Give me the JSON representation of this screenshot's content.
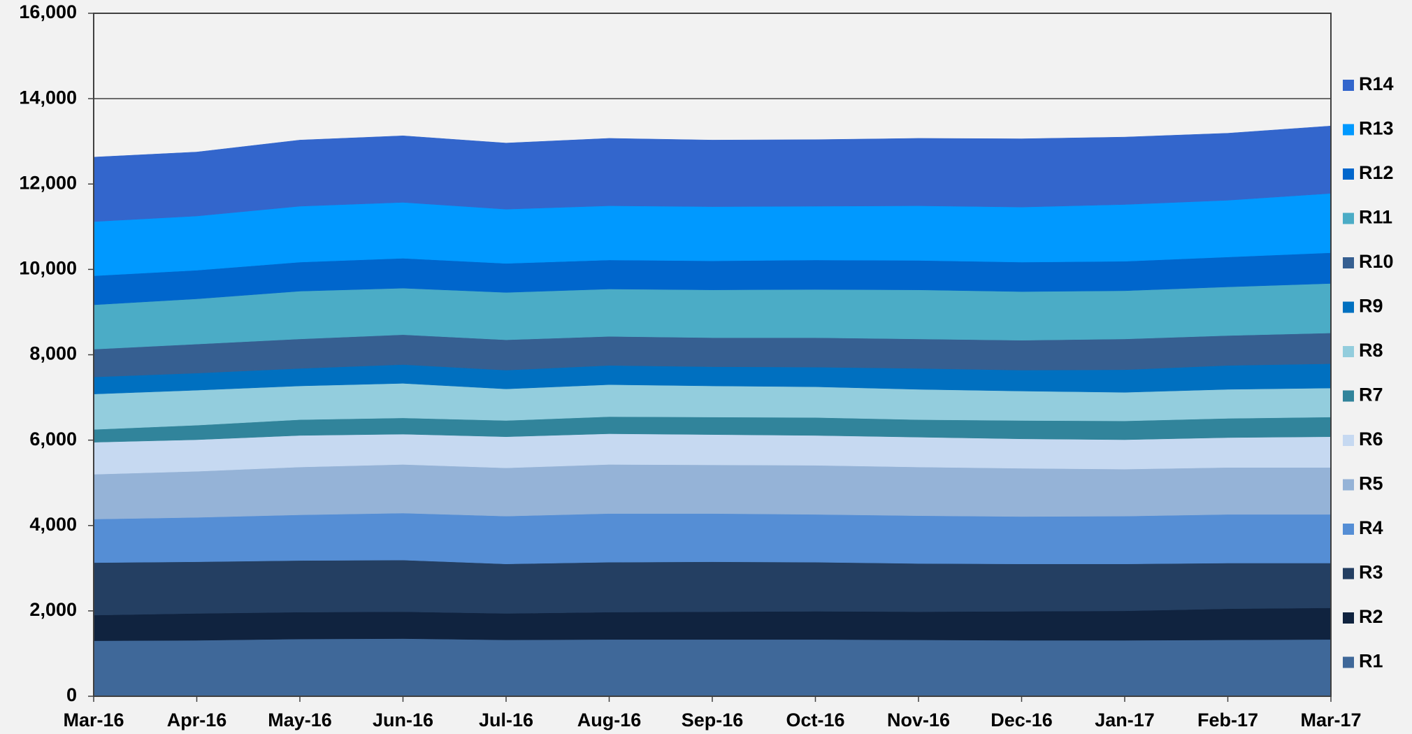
{
  "chart_data": {
    "type": "stacked_area",
    "categories": [
      "Mar-16",
      "Apr-16",
      "May-16",
      "Jun-16",
      "Jul-16",
      "Aug-16",
      "Sep-16",
      "Oct-16",
      "Nov-16",
      "Dec-16",
      "Jan-17",
      "Feb-17",
      "Mar-17"
    ],
    "ylim": [
      0,
      16000
    ],
    "yticks": [
      0,
      {
        "value": 2000,
        "label": "2,000"
      },
      {
        "value": 4000,
        "label": "4,000"
      },
      {
        "value": 6000,
        "label": "6,000"
      },
      {
        "value": 8000,
        "label": "8,000"
      },
      {
        "value": 10000,
        "label": "10,000"
      },
      {
        "value": 12000,
        "label": "12,000"
      },
      {
        "value": 14000,
        "label": "14,000"
      },
      {
        "value": 16000,
        "label": "16,000"
      }
    ],
    "grid": true,
    "legend": "right",
    "series": [
      {
        "name": "R1",
        "color": "#3f6899",
        "values": [
          1300,
          1310,
          1340,
          1350,
          1320,
          1330,
          1330,
          1330,
          1320,
          1310,
          1310,
          1320,
          1330
        ]
      },
      {
        "name": "R2",
        "color": "#10233f",
        "values": [
          600,
          630,
          630,
          630,
          620,
          640,
          650,
          660,
          660,
          680,
          690,
          730,
          740
        ]
      },
      {
        "name": "R3",
        "color": "#243f62",
        "values": [
          1230,
          1210,
          1210,
          1210,
          1160,
          1170,
          1170,
          1150,
          1130,
          1110,
          1100,
          1070,
          1050
        ]
      },
      {
        "name": "R4",
        "color": "#558ed5",
        "values": [
          1020,
          1040,
          1070,
          1100,
          1120,
          1140,
          1130,
          1120,
          1120,
          1110,
          1120,
          1140,
          1140
        ]
      },
      {
        "name": "R5",
        "color": "#95b3d7",
        "values": [
          1050,
          1080,
          1120,
          1140,
          1130,
          1150,
          1140,
          1150,
          1140,
          1130,
          1100,
          1100,
          1100
        ]
      },
      {
        "name": "R6",
        "color": "#c6d9f1",
        "values": [
          750,
          740,
          740,
          710,
          730,
          720,
          710,
          700,
          700,
          690,
          690,
          700,
          720
        ]
      },
      {
        "name": "R7",
        "color": "#31849b",
        "values": [
          300,
          340,
          370,
          380,
          380,
          400,
          410,
          420,
          410,
          430,
          440,
          450,
          460
        ]
      },
      {
        "name": "R8",
        "color": "#93cddd",
        "values": [
          830,
          820,
          790,
          810,
          740,
          750,
          730,
          720,
          710,
          690,
          670,
          680,
          680
        ]
      },
      {
        "name": "R9",
        "color": "#0070c0",
        "values": [
          400,
          400,
          410,
          440,
          440,
          450,
          450,
          460,
          490,
          490,
          530,
          560,
          570
        ]
      },
      {
        "name": "R10",
        "color": "#365f91",
        "values": [
          650,
          680,
          690,
          700,
          710,
          680,
          680,
          690,
          690,
          700,
          720,
          700,
          720
        ]
      },
      {
        "name": "R11",
        "color": "#4bacc6",
        "values": [
          1040,
          1060,
          1120,
          1090,
          1110,
          1110,
          1120,
          1130,
          1150,
          1140,
          1130,
          1140,
          1160
        ]
      },
      {
        "name": "R12",
        "color": "#0066cc",
        "values": [
          680,
          670,
          680,
          700,
          680,
          680,
          680,
          690,
          690,
          690,
          690,
          700,
          720
        ]
      },
      {
        "name": "R13",
        "color": "#0099ff",
        "values": [
          1270,
          1270,
          1310,
          1310,
          1270,
          1270,
          1270,
          1260,
          1280,
          1290,
          1330,
          1330,
          1390
        ]
      },
      {
        "name": "R14",
        "color": "#3366cc",
        "values": [
          1510,
          1500,
          1550,
          1560,
          1550,
          1580,
          1560,
          1560,
          1580,
          1600,
          1580,
          1570,
          1580
        ]
      }
    ]
  }
}
